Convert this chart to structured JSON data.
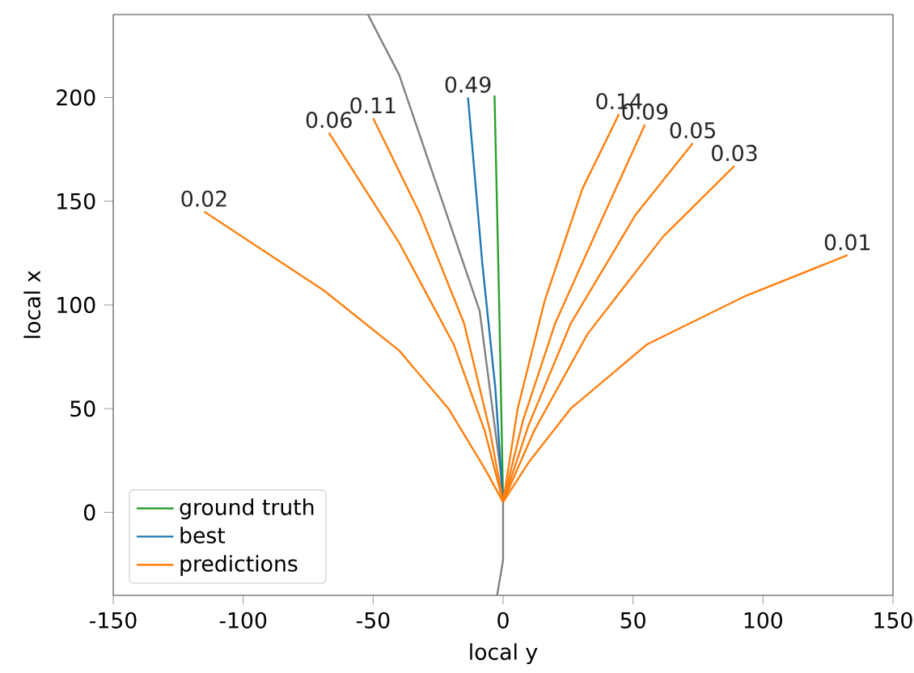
{
  "chart_data": {
    "type": "line",
    "xlabel": "local y",
    "ylabel": "local x",
    "xlim": [
      -150,
      150
    ],
    "ylim": [
      -40,
      240
    ],
    "xticks": [
      -150,
      -100,
      -50,
      0,
      50,
      100,
      150
    ],
    "yticks": [
      0,
      50,
      100,
      150,
      200
    ],
    "grid": false,
    "legend": "bottom left",
    "series": [
      {
        "color": "#808080",
        "x": [
          -52,
          -40,
          -9,
          -1,
          0,
          0,
          -2.3
        ],
        "values": [
          240,
          211,
          97,
          20,
          5,
          -23,
          -40
        ]
      },
      {
        "name": "ground truth",
        "color": "#2ca02c",
        "x": [
          0,
          -1.5,
          -3.3
        ],
        "values": [
          5,
          100,
          201
        ]
      },
      {
        "name": "best",
        "color": "#1f77b4",
        "x": [
          0,
          -3,
          -8,
          -13.5
        ],
        "values": [
          5,
          60,
          120,
          200
        ]
      },
      {
        "name": "predictions",
        "color": "#ff7f0e",
        "x": [
          0,
          -7,
          -21,
          -40,
          -69,
          -115
        ],
        "values": [
          5,
          21,
          50,
          78,
          107,
          145
        ]
      },
      {
        "color": "#ff7f0e",
        "x": [
          0,
          -7,
          -19,
          -40,
          -67
        ],
        "values": [
          5,
          39,
          81,
          130,
          183
        ]
      },
      {
        "color": "#ff7f0e",
        "x": [
          0,
          -5,
          -15,
          -32,
          -50
        ],
        "values": [
          5,
          39,
          91,
          144,
          190
        ]
      },
      {
        "color": "#ff7f0e",
        "x": [
          0,
          5.6,
          16,
          30.5,
          44.6
        ],
        "values": [
          5,
          50,
          102,
          156,
          192
        ]
      },
      {
        "color": "#ff7f0e",
        "x": [
          0,
          7.7,
          20,
          38.8,
          54.6
        ],
        "values": [
          5,
          44.5,
          91,
          143.5,
          187
        ]
      },
      {
        "color": "#ff7f0e",
        "x": [
          0,
          9.8,
          26,
          51,
          73
        ],
        "values": [
          5,
          42,
          91,
          143.5,
          178
        ]
      },
      {
        "color": "#ff7f0e",
        "x": [
          0,
          11.8,
          32.5,
          61.6,
          89
        ],
        "values": [
          5,
          39,
          86,
          133,
          167
        ]
      },
      {
        "color": "#ff7f0e",
        "x": [
          0,
          9.8,
          26,
          55.4,
          92.7,
          132.5
        ],
        "values": [
          5,
          24,
          50,
          81,
          104,
          124
        ]
      }
    ],
    "annotations": [
      {
        "text": "0.49",
        "x": -13.5,
        "y": 200
      },
      {
        "text": "0.02",
        "x": -115,
        "y": 145
      },
      {
        "text": "0.06",
        "x": -67,
        "y": 183
      },
      {
        "text": "0.11",
        "x": -50,
        "y": 190
      },
      {
        "text": "0.14",
        "x": 44.6,
        "y": 192
      },
      {
        "text": "0.09",
        "x": 54.6,
        "y": 187
      },
      {
        "text": "0.05",
        "x": 73,
        "y": 178
      },
      {
        "text": "0.03",
        "x": 89,
        "y": 167
      },
      {
        "text": "0.01",
        "x": 132.5,
        "y": 124
      }
    ]
  }
}
